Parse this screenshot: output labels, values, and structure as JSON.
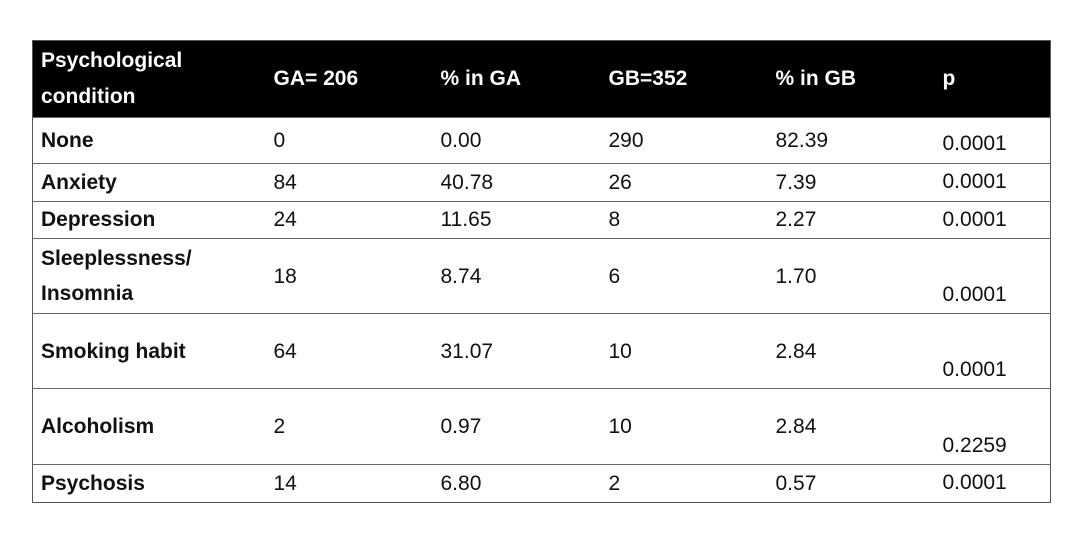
{
  "table": {
    "header": [
      "Psychological condition",
      "GA= 206",
      "% in GA",
      "GB=352",
      "% in GB",
      "p"
    ],
    "rows": [
      [
        "None",
        "0",
        "0.00",
        "290",
        "82.39",
        "0.0001"
      ],
      [
        "Anxiety",
        "84",
        "40.78",
        "26",
        "7.39",
        "0.0001"
      ],
      [
        "Depression",
        "24",
        "11.65",
        "8",
        "2.27",
        "0.0001"
      ],
      [
        "Sleeplessness/ Insomnia",
        "18",
        "8.74",
        "6",
        "1.70",
        "0.0001"
      ],
      [
        "Smoking habit",
        "64",
        "31.07",
        "10",
        "2.84",
        "0.0001"
      ],
      [
        "Alcoholism",
        "2",
        "0.97",
        "10",
        "2.84",
        "0.2259"
      ],
      [
        "Psychosis",
        "14",
        "6.80",
        "2",
        "0.57",
        "0.0001"
      ]
    ]
  }
}
